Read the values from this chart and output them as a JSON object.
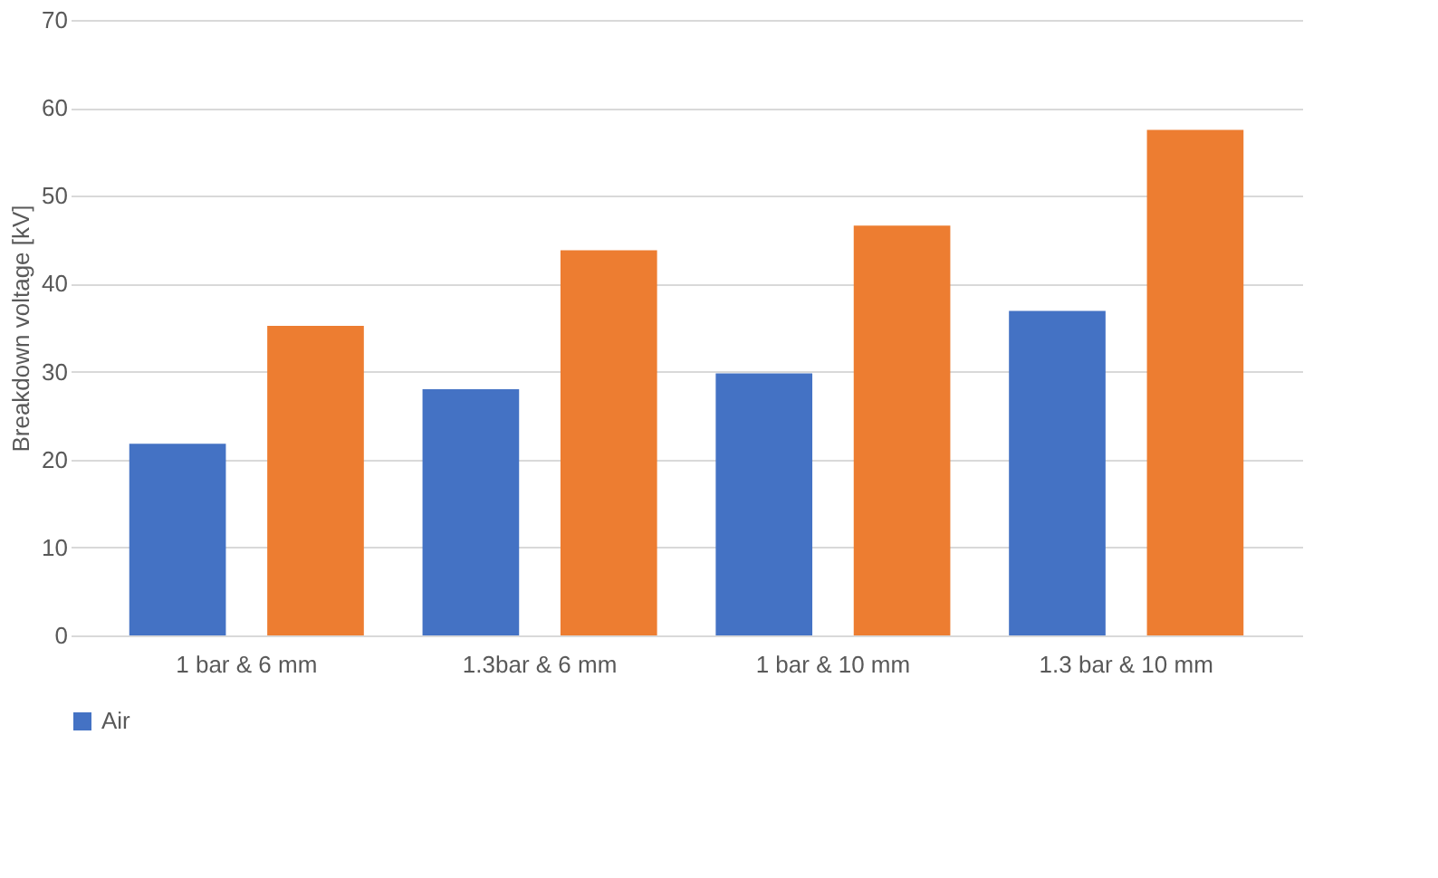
{
  "chart_data": {
    "type": "bar",
    "ylabel": "Breakdown voltage [kV]",
    "categories": [
      "1 bar & 6 mm",
      "1.3bar & 6 mm",
      "1 bar & 10 mm",
      "1.3 bar & 10 mm"
    ],
    "series": [
      {
        "name": "Air",
        "color": "#4472c4",
        "values": [
          21.8,
          28.0,
          29.8,
          36.9
        ]
      },
      {
        "color": "#ed7d31",
        "values": [
          35.2,
          43.8,
          46.6,
          57.5
        ]
      }
    ],
    "ylim": [
      0,
      70
    ],
    "yticks": [
      0,
      10,
      20,
      30,
      40,
      50,
      60,
      70
    ],
    "grid": "y",
    "legend": "bottom"
  }
}
